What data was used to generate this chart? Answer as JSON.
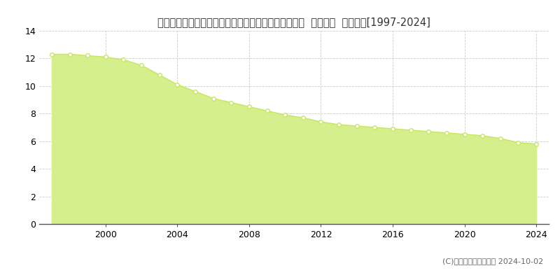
{
  "title": "福島県耶麻郡猪苗代町大字千代田字千代田２番１７外  基準地価  地価推移[1997-2024]",
  "years": [
    1997,
    1998,
    1999,
    2000,
    2001,
    2002,
    2003,
    2004,
    2005,
    2006,
    2007,
    2008,
    2009,
    2010,
    2011,
    2012,
    2013,
    2014,
    2015,
    2016,
    2017,
    2018,
    2019,
    2020,
    2021,
    2022,
    2023,
    2024
  ],
  "values": [
    12.3,
    12.3,
    12.2,
    12.1,
    11.9,
    11.5,
    10.8,
    10.1,
    9.6,
    9.1,
    8.8,
    8.5,
    8.2,
    7.9,
    7.7,
    7.4,
    7.2,
    7.1,
    7.0,
    6.9,
    6.8,
    6.7,
    6.6,
    6.5,
    6.4,
    6.2,
    5.9,
    5.8
  ],
  "fill_color": "#d4ef8b",
  "line_color": "#c8e660",
  "marker_color": "#ffffff",
  "marker_edge_color": "#c8e660",
  "background_color": "#ffffff",
  "grid_color": "#cccccc",
  "ylim": [
    0,
    14
  ],
  "yticks": [
    0,
    2,
    4,
    6,
    8,
    10,
    12,
    14
  ],
  "xticks": [
    2000,
    2004,
    2008,
    2012,
    2016,
    2020,
    2024
  ],
  "xlim_left": 1996.3,
  "xlim_right": 2024.7,
  "legend_color": "#c8e660",
  "copyright_text": "(C)土地価格ドットコム 2024-10-02",
  "title_fontsize": 10.5,
  "tick_fontsize": 9,
  "legend_fontsize": 9,
  "copyright_fontsize": 8
}
